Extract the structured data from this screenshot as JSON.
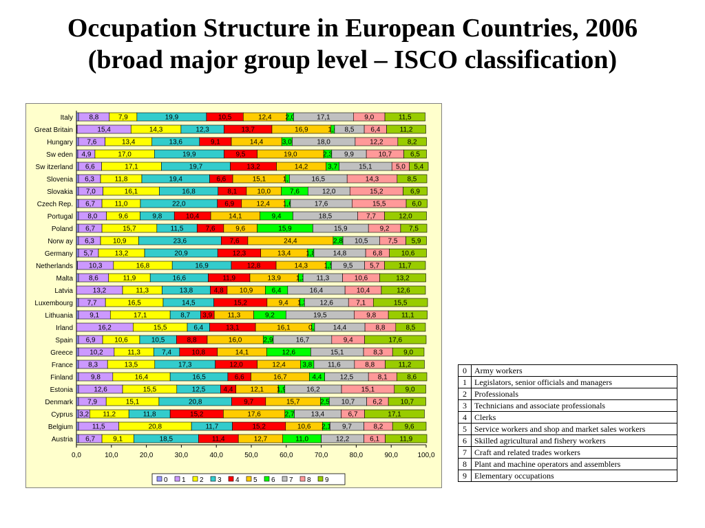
{
  "title_line1": "Occupation Structure in European Countries, 2006",
  "title_line2": "(broad major group level – ISCO classification)",
  "colors": [
    "#9999ff",
    "#cc99ff",
    "#ffff00",
    "#33cccc",
    "#ff0000",
    "#ffcc00",
    "#00ff00",
    "#c0c0c0",
    "#ff9999",
    "#99cc00"
  ],
  "chart_data": {
    "type": "bar",
    "orientation": "horizontal",
    "stacked": true,
    "xlim": [
      0,
      100
    ],
    "x_ticks": [
      "0,0",
      "10,0",
      "20,0",
      "30,0",
      "40,0",
      "50,0",
      "60,0",
      "70,0",
      "80,0",
      "90,0",
      "100,0"
    ],
    "categories": [
      "Italy",
      "Great Britain",
      "Hungary",
      "Sw eden",
      "Sw itzerland",
      "Slovenia",
      "Slovakia",
      "Czech Rep.",
      "Portugal",
      "Poland",
      "Norw ay",
      "Germany",
      "Netherlands",
      "Malta",
      "Latvia",
      "Luxembourg",
      "Lithuania",
      "Irland",
      "Spain",
      "Greece",
      "France",
      "Finland",
      "Estonia",
      "Denmark",
      "Cyprus",
      "Belgium",
      "Austria"
    ],
    "series_names": [
      "0",
      "1",
      "2",
      "3",
      "4",
      "5",
      "6",
      "7",
      "8",
      "9"
    ],
    "rows": [
      [
        0.6,
        8.8,
        7.9,
        19.9,
        10.5,
        12.4,
        2.0,
        17.1,
        9.0,
        11.5
      ],
      [
        0.2,
        15.4,
        14.3,
        12.3,
        13.7,
        16.9,
        1.0,
        8.5,
        6.4,
        11.2
      ],
      [
        0.6,
        7.6,
        13.4,
        13.6,
        9.1,
        14.4,
        3.0,
        18.0,
        12.2,
        8.2
      ],
      [
        0.4,
        4.9,
        17.0,
        19.9,
        9.5,
        19.0,
        2.3,
        9.9,
        10.7,
        6.5
      ],
      [
        0.6,
        6.6,
        17.1,
        19.7,
        13.2,
        14.2,
        3.7,
        15.1,
        5.0,
        5.4
      ],
      [
        0.6,
        6.3,
        11.8,
        19.4,
        6.6,
        15.1,
        1.1,
        16.5,
        14.3,
        8.5
      ],
      [
        0.6,
        7.0,
        16.1,
        16.8,
        8.1,
        10.0,
        7.6,
        12.0,
        15.2,
        6.9
      ],
      [
        0.6,
        6.7,
        11.0,
        22.0,
        6.9,
        12.4,
        1.6,
        17.6,
        15.5,
        6.0
      ],
      [
        0.6,
        8.0,
        9.6,
        9.8,
        10.4,
        14.1,
        9.4,
        18.5,
        7.7,
        12.0
      ],
      [
        0.6,
        6.7,
        15.7,
        11.5,
        7.6,
        9.6,
        15.9,
        15.9,
        9.2,
        7.5
      ],
      [
        0.6,
        6.3,
        10.9,
        23.6,
        7.6,
        24.4,
        2.8,
        10.5,
        7.5,
        5.9
      ],
      [
        0.6,
        5.7,
        13.2,
        20.9,
        12.3,
        13.4,
        1.8,
        14.8,
        6.8,
        10.6
      ],
      [
        0.3,
        10.3,
        16.8,
        16.9,
        12.8,
        14.3,
        1.5,
        9.5,
        5.7,
        11.7
      ],
      [
        0.6,
        8.6,
        11.9,
        16.6,
        11.9,
        13.9,
        1.3,
        11.3,
        10.6,
        13.2
      ],
      [
        0.0,
        13.2,
        11.3,
        13.8,
        4.8,
        10.9,
        6.4,
        16.4,
        10.4,
        12.6
      ],
      [
        0.6,
        7.7,
        16.5,
        14.5,
        15.2,
        9.4,
        1.3,
        12.6,
        7.1,
        15.5
      ],
      [
        0.6,
        9.1,
        17.1,
        8.7,
        3.9,
        11.3,
        9.2,
        19.5,
        9.8,
        11.1
      ],
      [
        0.0,
        16.2,
        15.5,
        6.4,
        13.1,
        16.1,
        0.8,
        14.4,
        8.8,
        8.5
      ],
      [
        0.6,
        6.9,
        10.6,
        10.5,
        8.8,
        16.0,
        2.9,
        16.7,
        9.4,
        17.6
      ],
      [
        0.6,
        10.2,
        11.3,
        7.4,
        10.8,
        14.1,
        12.6,
        15.1,
        8.3,
        9.0
      ],
      [
        0.6,
        8.3,
        13.5,
        17.3,
        12.0,
        12.4,
        3.8,
        11.6,
        8.8,
        11.2
      ],
      [
        0.6,
        9.8,
        16.4,
        16.5,
        6.6,
        16.7,
        4.4,
        12.5,
        8.1,
        8.6
      ],
      [
        0.6,
        12.6,
        15.5,
        12.5,
        4.4,
        12.1,
        1.9,
        16.2,
        15.1,
        9.0
      ],
      [
        0.6,
        7.9,
        15.1,
        20.8,
        9.7,
        15.7,
        2.5,
        10.7,
        6.2,
        10.7
      ],
      [
        0.6,
        3.2,
        11.2,
        11.8,
        15.2,
        17.6,
        2.7,
        13.4,
        6.7,
        17.1
      ],
      [
        0.6,
        11.5,
        20.8,
        11.7,
        15.2,
        10.6,
        2.1,
        9.7,
        8.2,
        9.6
      ],
      [
        0.6,
        6.7,
        9.1,
        18.5,
        11.4,
        12.7,
        11.0,
        12.2,
        6.1,
        11.9
      ]
    ],
    "labels": [
      [
        "",
        "8,8",
        "7,9",
        "19,9",
        "10,5",
        "12,4",
        "2,0",
        "17,1",
        "9,0",
        "11,5"
      ],
      [
        "",
        "15,4",
        "14,3",
        "12,3",
        "13,7",
        "16,9",
        "1,0",
        "8,5",
        "6,4",
        "11,2"
      ],
      [
        "",
        "7,6",
        "13,4",
        "13,6",
        "9,1",
        "14,4",
        "3,0",
        "18,0",
        "12,2",
        "8,2"
      ],
      [
        "",
        "4,9",
        "17,0",
        "19,9",
        "9,5",
        "19,0",
        "2,3",
        "9,9",
        "10,7",
        "6,5"
      ],
      [
        "",
        "6,6",
        "17,1",
        "19,7",
        "13,2",
        "14,2",
        "3,7",
        "15,1",
        "5,0",
        "5,4"
      ],
      [
        "",
        "6,3",
        "11,8",
        "19,4",
        "6,6",
        "15,1",
        "1,1",
        "16,5",
        "14,3",
        "8,5"
      ],
      [
        "",
        "7,0",
        "16,1",
        "16,8",
        "8,1",
        "10,0",
        "7,6",
        "12,0",
        "15,2",
        "6,9"
      ],
      [
        "",
        "6,7",
        "11,0",
        "22,0",
        "6,9",
        "12,4",
        "1,6",
        "17,6",
        "15,5",
        "6,0"
      ],
      [
        "",
        "8,0",
        "9,6",
        "9,8",
        "10,4",
        "14,1",
        "9,4",
        "18,5",
        "7,7",
        "12,0"
      ],
      [
        "",
        "6,7",
        "15,7",
        "11,5",
        "7,6",
        "9,6",
        "15,9",
        "15,9",
        "9,2",
        "7,5"
      ],
      [
        "",
        "6,3",
        "10,9",
        "23,6",
        "7,6",
        "24,4",
        "2,8",
        "10,5",
        "7,5",
        "5,9"
      ],
      [
        "",
        "5,7",
        "13,2",
        "20,9",
        "12,3",
        "13,4",
        "1,8",
        "14,8",
        "6,8",
        "10,6"
      ],
      [
        "",
        "10,3",
        "16,8",
        "16,9",
        "12,8",
        "14,3",
        "1,5",
        "9,5",
        "5,7",
        "11,7"
      ],
      [
        "",
        "8,6",
        "11,9",
        "16,6",
        "11,9",
        "13,9",
        "1,3",
        "11,3",
        "10,6",
        "13,2"
      ],
      [
        "",
        "13,2",
        "11,3",
        "13,8",
        "4,8",
        "10,9",
        "6,4",
        "16,4",
        "10,4",
        "12,6"
      ],
      [
        "",
        "7,7",
        "16,5",
        "14,5",
        "15,2",
        "9,4",
        "1,3",
        "12,6",
        "7,1",
        "15,5"
      ],
      [
        "",
        "9,1",
        "17,1",
        "8,7",
        "3,9",
        "11,3",
        "9,2",
        "19,5",
        "9,8",
        "11,1"
      ],
      [
        "",
        "16,2",
        "15,5",
        "6,4",
        "13,1",
        "16,1",
        "0,8",
        "14,4",
        "8,8",
        "8,5"
      ],
      [
        "",
        "6,9",
        "10,6",
        "10,5",
        "8,8",
        "16,0",
        "2,9",
        "16,7",
        "9,4",
        "17,6"
      ],
      [
        "",
        "10,2",
        "11,3",
        "7,4",
        "10,8",
        "14,1",
        "12,6",
        "15,1",
        "8,3",
        "9,0"
      ],
      [
        "",
        "8,3",
        "13,5",
        "17,3",
        "12,0",
        "12,4",
        "3,8",
        "11,6",
        "8,8",
        "11,2"
      ],
      [
        "",
        "9,8",
        "16,4",
        "16,5",
        "6,6",
        "16,7",
        "4,4",
        "12,5",
        "8,1",
        "8,6"
      ],
      [
        "",
        "12,6",
        "15,5",
        "12,5",
        "4,4",
        "12,1",
        "1,9",
        "16,2",
        "15,1",
        "9,0"
      ],
      [
        "",
        "7,9",
        "15,1",
        "20,8",
        "9,7",
        "15,7",
        "2,5",
        "10,7",
        "6,2",
        "10,7"
      ],
      [
        "",
        "3,2",
        "11,2",
        "11,8",
        "15,2",
        "17,6",
        "2,7",
        "13,4",
        "6,7",
        "17,1"
      ],
      [
        "",
        "11,5",
        "20,8",
        "11,7",
        "15,2",
        "10,6",
        "2,1",
        "9,7",
        "8,2",
        "9,6"
      ],
      [
        "",
        "6,7",
        "9,1",
        "18,5",
        "11,4",
        "12,7",
        "11,0",
        "12,2",
        "6,1",
        "11,9"
      ]
    ],
    "legend_position": "bottom",
    "grid": false
  },
  "legend_table": [
    {
      "code": "0",
      "label": "Army workers"
    },
    {
      "code": "1",
      "label": "Legislators, senior officials and managers"
    },
    {
      "code": "2",
      "label": "Professionals"
    },
    {
      "code": "3",
      "label": "Technicians and associate professionals"
    },
    {
      "code": "4",
      "label": "Clerks"
    },
    {
      "code": "5",
      "label": "Service workers and shop and market sales workers"
    },
    {
      "code": "6",
      "label": "Skilled agricultural and fishery workers"
    },
    {
      "code": "7",
      "label": "Craft and related trades workers"
    },
    {
      "code": "8",
      "label": "Plant and machine operators and assemblers"
    },
    {
      "code": "9",
      "label": "Elementary occupations"
    }
  ]
}
